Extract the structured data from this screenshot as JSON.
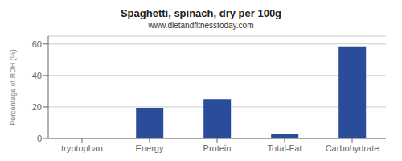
{
  "chart_data": {
    "type": "bar",
    "title": "Spaghetti, spinach, dry per 100g",
    "subtitle": "www.dietandfitnesstoday.com",
    "categories": [
      "tryptophan",
      "Energy",
      "Protein",
      "Total-Fat",
      "Carbohydrate"
    ],
    "values": [
      0,
      19.5,
      25,
      2.5,
      58.5
    ],
    "color": "#2b4b9b",
    "ylabel": "Percentage of RDH (%)",
    "ylim": [
      0,
      65
    ],
    "yticks": [
      0,
      20,
      40,
      60
    ],
    "grid": true
  }
}
